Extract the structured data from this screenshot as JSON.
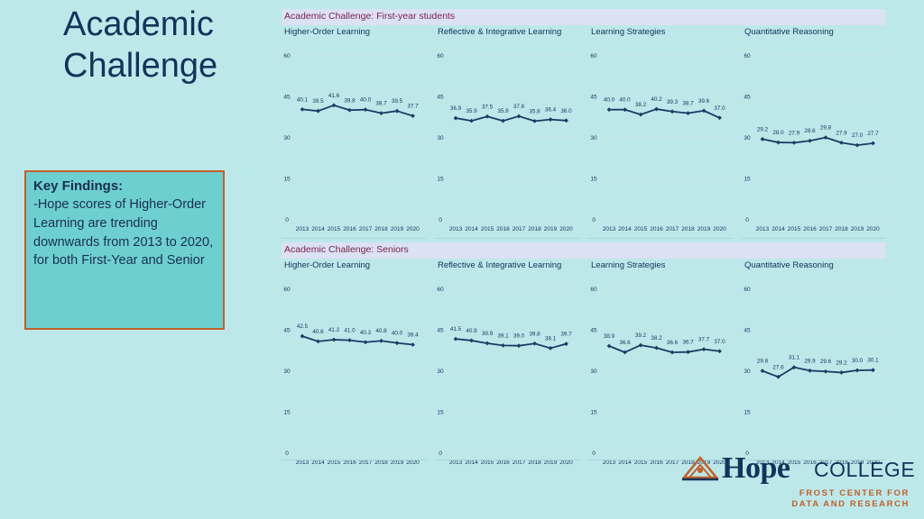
{
  "page": {
    "title": "Academic Challenge",
    "key_findings": {
      "heading": "Key Findings:",
      "text": "-Hope scores of Higher-Order Learning are trending downwards from 2013 to 2020, for both First-Year and Senior"
    }
  },
  "sections": [
    {
      "title": "Academic Challenge: First-year students"
    },
    {
      "title": "Academic Challenge: Seniors"
    }
  ],
  "logo": {
    "wordmark_bold": "Hope",
    "wordmark_light": "COLLEGE",
    "line1": "FROST CENTER FOR",
    "line2": "DATA AND RESEARCH"
  },
  "colors": {
    "line": "#1b3a63",
    "title": "#12335a",
    "section_title": "#7a1f48",
    "accent": "#c0612a",
    "gridline": "#c4e2e4"
  },
  "chart_data": [
    {
      "type": "line",
      "section": "First-year",
      "title": "Higher-Order Learning",
      "x": [
        "2013",
        "2014",
        "2015",
        "2016",
        "2017",
        "2018",
        "2019",
        "2020"
      ],
      "values": [
        40.1,
        39.5,
        41.6,
        39.8,
        40.0,
        38.7,
        39.5,
        37.7
      ],
      "ylim": [
        0,
        60
      ],
      "yticks": [
        0,
        15,
        30,
        45,
        60
      ],
      "grid": true
    },
    {
      "type": "line",
      "section": "First-year",
      "title": "Reflective & Integrative Learning",
      "x": [
        "2013",
        "2014",
        "2015",
        "2016",
        "2017",
        "2018",
        "2019",
        "2020"
      ],
      "values": [
        36.9,
        35.9,
        37.5,
        35.9,
        37.6,
        35.8,
        36.4,
        36.0
      ],
      "ylim": [
        0,
        60
      ],
      "yticks": [
        0,
        15,
        30,
        45,
        60
      ],
      "grid": true
    },
    {
      "type": "line",
      "section": "First-year",
      "title": "Learning Strategies",
      "x": [
        "2013",
        "2014",
        "2015",
        "2016",
        "2017",
        "2018",
        "2019",
        "2020"
      ],
      "values": [
        40.0,
        40.0,
        38.2,
        40.2,
        39.3,
        38.7,
        39.6,
        37.0
      ],
      "ylim": [
        0,
        60
      ],
      "yticks": [
        0,
        15,
        30,
        45,
        60
      ],
      "grid": true
    },
    {
      "type": "line",
      "section": "First-year",
      "title": "Quantitative Reasoning",
      "x": [
        "2013",
        "2014",
        "2015",
        "2016",
        "2017",
        "2018",
        "2019",
        "2020"
      ],
      "values": [
        29.2,
        28.0,
        27.9,
        28.6,
        29.8,
        27.9,
        27.0,
        27.7
      ],
      "ylim": [
        0,
        60
      ],
      "yticks": [
        0,
        15,
        30,
        45,
        60
      ],
      "grid": true
    },
    {
      "type": "line",
      "section": "Senior",
      "title": "Higher-Order Learning",
      "x": [
        "2013",
        "2014",
        "2015",
        "2016",
        "2017",
        "2018",
        "2019",
        "2020"
      ],
      "values": [
        42.5,
        40.6,
        41.2,
        41.0,
        40.3,
        40.8,
        40.0,
        39.4
      ],
      "ylim": [
        0,
        60
      ],
      "yticks": [
        0,
        15,
        30,
        45,
        60
      ],
      "grid": true
    },
    {
      "type": "line",
      "section": "Senior",
      "title": "Reflective & Integrative Learning",
      "x": [
        "2013",
        "2014",
        "2015",
        "2016",
        "2017",
        "2018",
        "2019",
        "2020"
      ],
      "values": [
        41.5,
        40.9,
        39.9,
        39.1,
        39.0,
        39.8,
        38.1,
        39.7
      ],
      "ylim": [
        0,
        60
      ],
      "yticks": [
        0,
        15,
        30,
        45,
        60
      ],
      "grid": true
    },
    {
      "type": "line",
      "section": "Senior",
      "title": "Learning Strategies",
      "x": [
        "2013",
        "2014",
        "2015",
        "2016",
        "2017",
        "2018",
        "2019",
        "2020"
      ],
      "values": [
        38.9,
        36.6,
        39.2,
        38.2,
        36.6,
        36.7,
        37.7,
        37.0
      ],
      "ylim": [
        0,
        60
      ],
      "yticks": [
        0,
        15,
        30,
        45,
        60
      ],
      "grid": true
    },
    {
      "type": "line",
      "section": "Senior",
      "title": "Quantitative Reasoning",
      "x": [
        "2013",
        "2014",
        "2015",
        "2016",
        "2017",
        "2018",
        "2019",
        "2020"
      ],
      "values": [
        29.8,
        27.6,
        31.1,
        29.9,
        29.6,
        29.2,
        30.0,
        30.1
      ],
      "ylim": [
        0,
        60
      ],
      "yticks": [
        0,
        15,
        30,
        45,
        60
      ],
      "grid": true
    }
  ]
}
